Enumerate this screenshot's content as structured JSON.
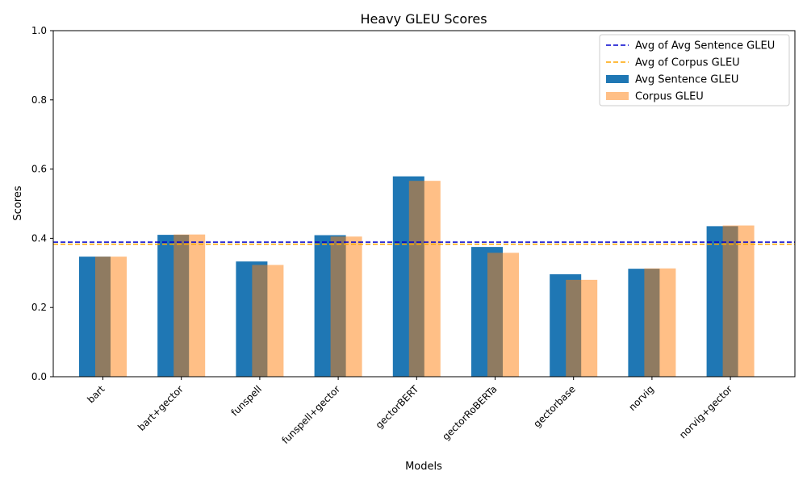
{
  "chart_data": {
    "type": "bar",
    "title": "Heavy GLEU Scores",
    "xlabel": "Models",
    "ylabel": "Scores",
    "ylim": [
      0,
      1.0
    ],
    "yticks": [
      "0.0",
      "0.2",
      "0.4",
      "0.6",
      "0.8",
      "1.0"
    ],
    "categories": [
      "bart",
      "bart+gector",
      "funspell",
      "funspell+gector",
      "gectorBERT",
      "gectorRoBERTa",
      "gectorbase",
      "norvig",
      "norvig+gector"
    ],
    "series": [
      {
        "name": "Avg Sentence GLEU",
        "color": "#1f77b4",
        "opacity": 1.0,
        "values": [
          0.347,
          0.41,
          0.333,
          0.409,
          0.579,
          0.375,
          0.296,
          0.312,
          0.435
        ]
      },
      {
        "name": "Corpus GLEU",
        "color": "#ff7f0e",
        "opacity": 0.5,
        "values": [
          0.347,
          0.411,
          0.323,
          0.405,
          0.566,
          0.358,
          0.28,
          0.313,
          0.437
        ]
      }
    ],
    "reference_lines": [
      {
        "name": "Avg of Avg Sentence GLEU",
        "value": 0.389,
        "color": "#0000cd",
        "style": "dashed"
      },
      {
        "name": "Avg of Corpus GLEU",
        "value": 0.383,
        "color": "#ffa500",
        "style": "dashed"
      }
    ],
    "legend_position": "top-right",
    "grid": false
  }
}
